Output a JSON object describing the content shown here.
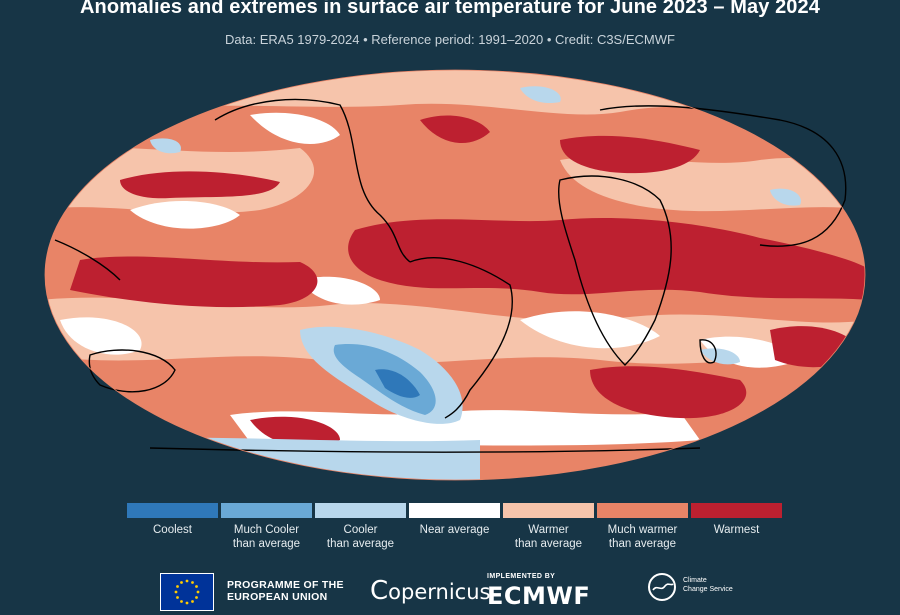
{
  "title": "Anomalies and extremes in surface air temperature for June 2023 – May 2024",
  "subtitle": "Data: ERA5 1979-2024 • Reference period: 1991–2020 • Credit: C3S/ECMWF",
  "legend": [
    {
      "label": "Coolest",
      "color": "#2f78b9"
    },
    {
      "label": "Much Cooler\nthan average",
      "color": "#6aa9d6"
    },
    {
      "label": "Cooler\nthan average",
      "color": "#b8d7ec"
    },
    {
      "label": "Near average",
      "color": "#ffffff"
    },
    {
      "label": "Warmer\nthan average",
      "color": "#f6c4ab"
    },
    {
      "label": "Much warmer\nthan average",
      "color": "#e88467"
    },
    {
      "label": "Warmest",
      "color": "#bd2030"
    }
  ],
  "logos": {
    "eu": "PROGRAMME OF THE\nEUROPEAN UNION",
    "copernicus": "opernicus",
    "implemented_by": "IMPLEMENTED BY",
    "ecmwf": "ECMWF",
    "c3s": "Climate\nChange Service"
  }
}
